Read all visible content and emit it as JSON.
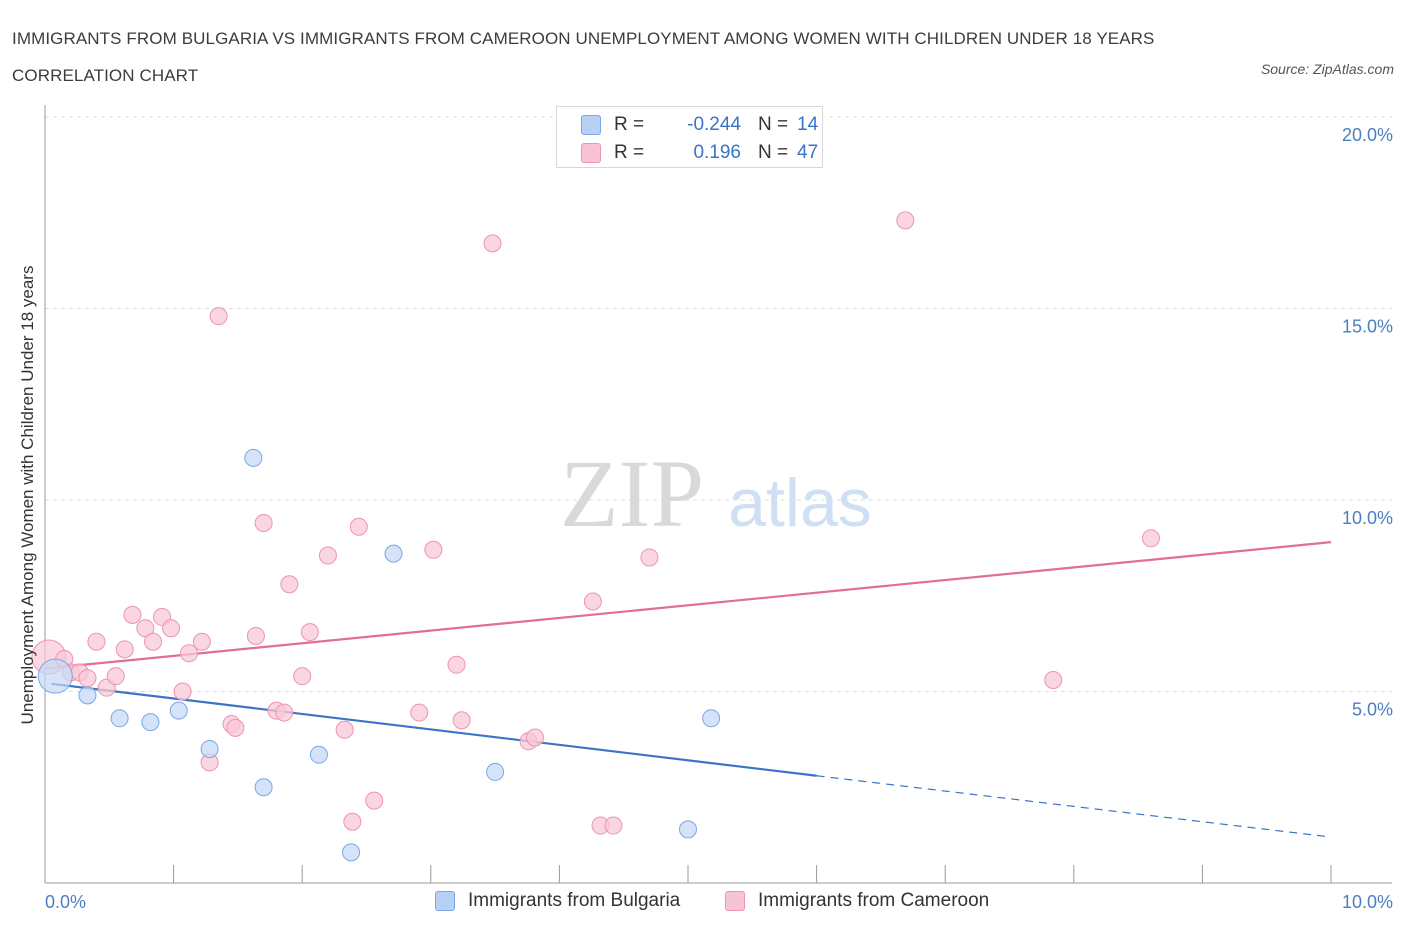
{
  "title": "IMMIGRANTS FROM BULGARIA VS IMMIGRANTS FROM CAMEROON UNEMPLOYMENT AMONG WOMEN WITH CHILDREN UNDER 18 YEARS CORRELATION CHART",
  "source": "Source: ZipAtlas.com",
  "watermark": {
    "zip": "ZIP",
    "atlas": "atlas"
  },
  "legend": {
    "rows": [
      {
        "r_label": "R =",
        "r_value": "-0.244",
        "n_label": "N =",
        "n_value": "14",
        "color": "#b8d0f4"
      },
      {
        "r_label": "R =",
        "r_value": "0.196",
        "n_label": "N =",
        "n_value": "47",
        "color": "#f8c4d4"
      }
    ]
  },
  "bottom_legend": [
    {
      "label": "Immigrants from Bulgaria",
      "color": "#b8d0f4"
    },
    {
      "label": "Immigrants from Cameroon",
      "color": "#f8c4d4"
    }
  ],
  "chart_data": {
    "type": "scatter",
    "title": "IMMIGRANTS FROM BULGARIA VS IMMIGRANTS FROM CAMEROON UNEMPLOYMENT AMONG WOMEN WITH CHILDREN UNDER 18 YEARS CORRELATION CHART",
    "xlabel": "",
    "ylabel": "Unemployment Among Women with Children Under 18 years",
    "xlim": [
      0,
      10
    ],
    "ylim": [
      0,
      20
    ],
    "x_tick_labels": [
      "0.0%",
      "10.0%"
    ],
    "y_tick_labels": [
      "5.0%",
      "10.0%",
      "15.0%",
      "20.0%"
    ],
    "y_ticks": [
      5,
      10,
      15,
      20
    ],
    "grid": "horizontal dashed",
    "legend_position": "top-center",
    "series": [
      {
        "name": "Immigrants from Bulgaria",
        "color": "#7aa7e6",
        "fill": "#c5d9f5",
        "line_color": "#3b73c8",
        "trend": {
          "x0": 0.05,
          "y0": 5.2,
          "x1": 6.0,
          "y1": 2.8,
          "x_dash_end": 10.0,
          "y_dash_end": 1.2
        },
        "points": [
          {
            "x": 0.08,
            "y": 5.4,
            "big": true
          },
          {
            "x": 0.33,
            "y": 4.9
          },
          {
            "x": 0.58,
            "y": 4.3
          },
          {
            "x": 0.82,
            "y": 4.2
          },
          {
            "x": 1.04,
            "y": 4.5
          },
          {
            "x": 1.28,
            "y": 3.5
          },
          {
            "x": 1.62,
            "y": 11.1
          },
          {
            "x": 1.7,
            "y": 2.5
          },
          {
            "x": 2.13,
            "y": 3.35
          },
          {
            "x": 2.38,
            "y": 0.8
          },
          {
            "x": 2.71,
            "y": 8.6
          },
          {
            "x": 3.5,
            "y": 2.9
          },
          {
            "x": 5.0,
            "y": 1.4
          },
          {
            "x": 5.18,
            "y": 4.3
          }
        ]
      },
      {
        "name": "Immigrants from Cameroon",
        "color": "#ee93b0",
        "fill": "#f8c8d8",
        "line_color": "#e06e98",
        "trend": {
          "x0": 0.0,
          "y0": 5.6,
          "x1": 10.0,
          "y1": 8.9
        },
        "points": [
          {
            "x": 0.03,
            "y": 5.9,
            "big": true
          },
          {
            "x": 0.15,
            "y": 5.85
          },
          {
            "x": 0.2,
            "y": 5.5
          },
          {
            "x": 0.27,
            "y": 5.5
          },
          {
            "x": 0.33,
            "y": 5.35
          },
          {
            "x": 0.4,
            "y": 6.3
          },
          {
            "x": 0.48,
            "y": 5.1
          },
          {
            "x": 0.55,
            "y": 5.4
          },
          {
            "x": 0.62,
            "y": 6.1
          },
          {
            "x": 0.68,
            "y": 7.0
          },
          {
            "x": 0.78,
            "y": 6.65
          },
          {
            "x": 0.84,
            "y": 6.3
          },
          {
            "x": 0.91,
            "y": 6.95
          },
          {
            "x": 0.98,
            "y": 6.65
          },
          {
            "x": 1.07,
            "y": 5.0
          },
          {
            "x": 1.12,
            "y": 6.0
          },
          {
            "x": 1.22,
            "y": 6.3
          },
          {
            "x": 1.28,
            "y": 3.15
          },
          {
            "x": 1.35,
            "y": 14.8
          },
          {
            "x": 1.45,
            "y": 4.15
          },
          {
            "x": 1.48,
            "y": 4.05
          },
          {
            "x": 1.64,
            "y": 6.45
          },
          {
            "x": 1.7,
            "y": 9.4
          },
          {
            "x": 1.8,
            "y": 4.5
          },
          {
            "x": 1.86,
            "y": 4.45
          },
          {
            "x": 1.9,
            "y": 7.8
          },
          {
            "x": 2.0,
            "y": 5.4
          },
          {
            "x": 2.06,
            "y": 6.55
          },
          {
            "x": 2.2,
            "y": 8.55
          },
          {
            "x": 2.33,
            "y": 4.0
          },
          {
            "x": 2.39,
            "y": 1.6
          },
          {
            "x": 2.44,
            "y": 9.3
          },
          {
            "x": 2.56,
            "y": 2.15
          },
          {
            "x": 2.91,
            "y": 4.45
          },
          {
            "x": 3.02,
            "y": 8.7
          },
          {
            "x": 3.2,
            "y": 5.7
          },
          {
            "x": 3.24,
            "y": 4.25
          },
          {
            "x": 3.48,
            "y": 16.7
          },
          {
            "x": 3.76,
            "y": 3.7
          },
          {
            "x": 3.81,
            "y": 3.8
          },
          {
            "x": 4.26,
            "y": 7.35
          },
          {
            "x": 4.32,
            "y": 1.5
          },
          {
            "x": 4.42,
            "y": 1.5
          },
          {
            "x": 4.7,
            "y": 8.5
          },
          {
            "x": 6.69,
            "y": 17.3
          },
          {
            "x": 7.84,
            "y": 5.3
          },
          {
            "x": 8.6,
            "y": 9.0
          }
        ]
      }
    ]
  }
}
